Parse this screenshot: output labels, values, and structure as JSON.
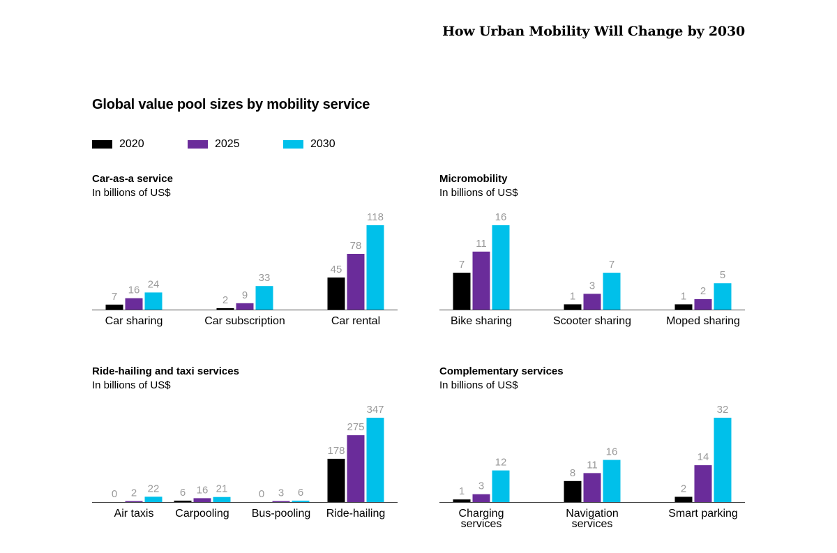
{
  "header": {
    "page_title": "How Urban Mobility Will Change by 2030"
  },
  "main_title": "Global value pool sizes by mobility service",
  "legend": [
    {
      "label": "2020",
      "color": "#000000"
    },
    {
      "label": "2025",
      "color": "#6a2c9a"
    },
    {
      "label": "2030",
      "color": "#00c0ea"
    }
  ],
  "chart_data": [
    {
      "type": "bar",
      "title": "Car-as-a service",
      "subtitle": "In billions of US$",
      "categories": [
        [
          "Car sharing"
        ],
        [
          "Car subscription"
        ],
        [
          "Car rental"
        ]
      ],
      "series": [
        {
          "name": "2020",
          "values": [
            7,
            2,
            45
          ]
        },
        {
          "name": "2025",
          "values": [
            16,
            9,
            78
          ]
        },
        {
          "name": "2030",
          "values": [
            24,
            33,
            118
          ]
        }
      ],
      "ylim": [
        0,
        118
      ]
    },
    {
      "type": "bar",
      "title": "Micromobility",
      "subtitle": "In billions of US$",
      "categories": [
        [
          "Bike sharing"
        ],
        [
          "Scooter sharing"
        ],
        [
          "Moped sharing"
        ]
      ],
      "series": [
        {
          "name": "2020",
          "values": [
            7,
            1,
            1
          ]
        },
        {
          "name": "2025",
          "values": [
            11,
            3,
            2
          ]
        },
        {
          "name": "2030",
          "values": [
            16,
            7,
            5
          ]
        }
      ],
      "ylim": [
        0,
        16
      ]
    },
    {
      "type": "bar",
      "title": "Ride-hailing and taxi services",
      "subtitle": "In billions of US$",
      "categories": [
        [
          "Air taxis"
        ],
        [
          "Carpooling"
        ],
        [
          "Bus-pooling"
        ],
        [
          "Ride-hailing"
        ]
      ],
      "series": [
        {
          "name": "2020",
          "values": [
            0,
            6,
            0,
            178
          ]
        },
        {
          "name": "2025",
          "values": [
            2,
            16,
            3,
            275
          ]
        },
        {
          "name": "2030",
          "values": [
            22,
            21,
            6,
            347
          ]
        }
      ],
      "ylim": [
        0,
        347
      ]
    },
    {
      "type": "bar",
      "title": "Complementary services",
      "subtitle": "In billions of US$",
      "categories": [
        [
          "Charging",
          "services"
        ],
        [
          "Navigation",
          "services"
        ],
        [
          "Smart parking"
        ]
      ],
      "series": [
        {
          "name": "2020",
          "values": [
            1,
            8,
            2
          ]
        },
        {
          "name": "2025",
          "values": [
            3,
            11,
            14
          ]
        },
        {
          "name": "2030",
          "values": [
            12,
            16,
            32
          ]
        }
      ],
      "ylim": [
        0,
        32
      ]
    }
  ]
}
